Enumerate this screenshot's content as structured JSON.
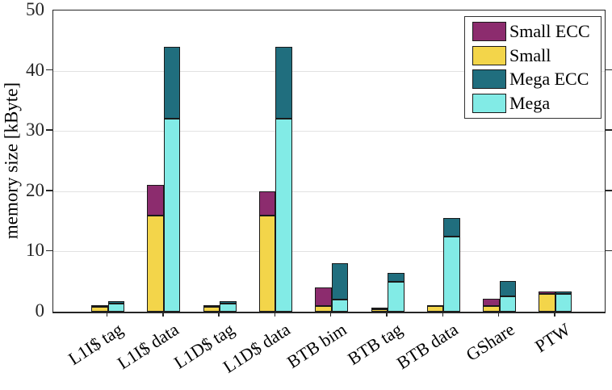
{
  "chart_data": {
    "type": "bar",
    "stacked": true,
    "title": "",
    "xlabel": "",
    "ylabel": "memory size [kByte]",
    "ylim": [
      0,
      50
    ],
    "y_ticks": [
      0,
      10,
      20,
      30,
      40,
      50
    ],
    "grid": "horizontal",
    "legend_position": "top-right",
    "legend_entries": [
      "Small ECC",
      "Small",
      "Mega ECC",
      "Mega"
    ],
    "categories": [
      "L1I$ tag",
      "L1I$ data",
      "L1D$ tag",
      "L1D$ data",
      "BTB bim",
      "BTB tag",
      "BTB data",
      "GShare",
      "PTW"
    ],
    "series": [
      {
        "name": "Small",
        "color": "#F3D54A",
        "values": [
          0.8,
          16,
          0.8,
          16,
          1.0,
          0.4,
          0.9,
          1.0,
          2.9
        ]
      },
      {
        "name": "Small ECC",
        "color": "#8C2C6E",
        "values": [
          0.05,
          5,
          0.05,
          4,
          3.0,
          0.1,
          0.15,
          1.1,
          0.4
        ]
      },
      {
        "name": "Mega",
        "color": "#82EBE6",
        "values": [
          1.3,
          32,
          1.3,
          32,
          2.0,
          5.0,
          12.5,
          2.6,
          3.0
        ]
      },
      {
        "name": "Mega ECC",
        "color": "#206E7E",
        "values": [
          0.4,
          12,
          0.4,
          12,
          6.0,
          1.5,
          3.0,
          2.5,
          0.3
        ]
      }
    ],
    "stacks": [
      [
        "Small",
        "Small ECC"
      ],
      [
        "Mega",
        "Mega ECC"
      ]
    ],
    "colors": {
      "small_ecc": "#8C2C6E",
      "small": "#F3D54A",
      "mega_ecc": "#206E7E",
      "mega": "#82EBE6",
      "gridline": "#E2E2E2",
      "axis": "#262626",
      "bar_edge": "#1A1A1A"
    }
  }
}
